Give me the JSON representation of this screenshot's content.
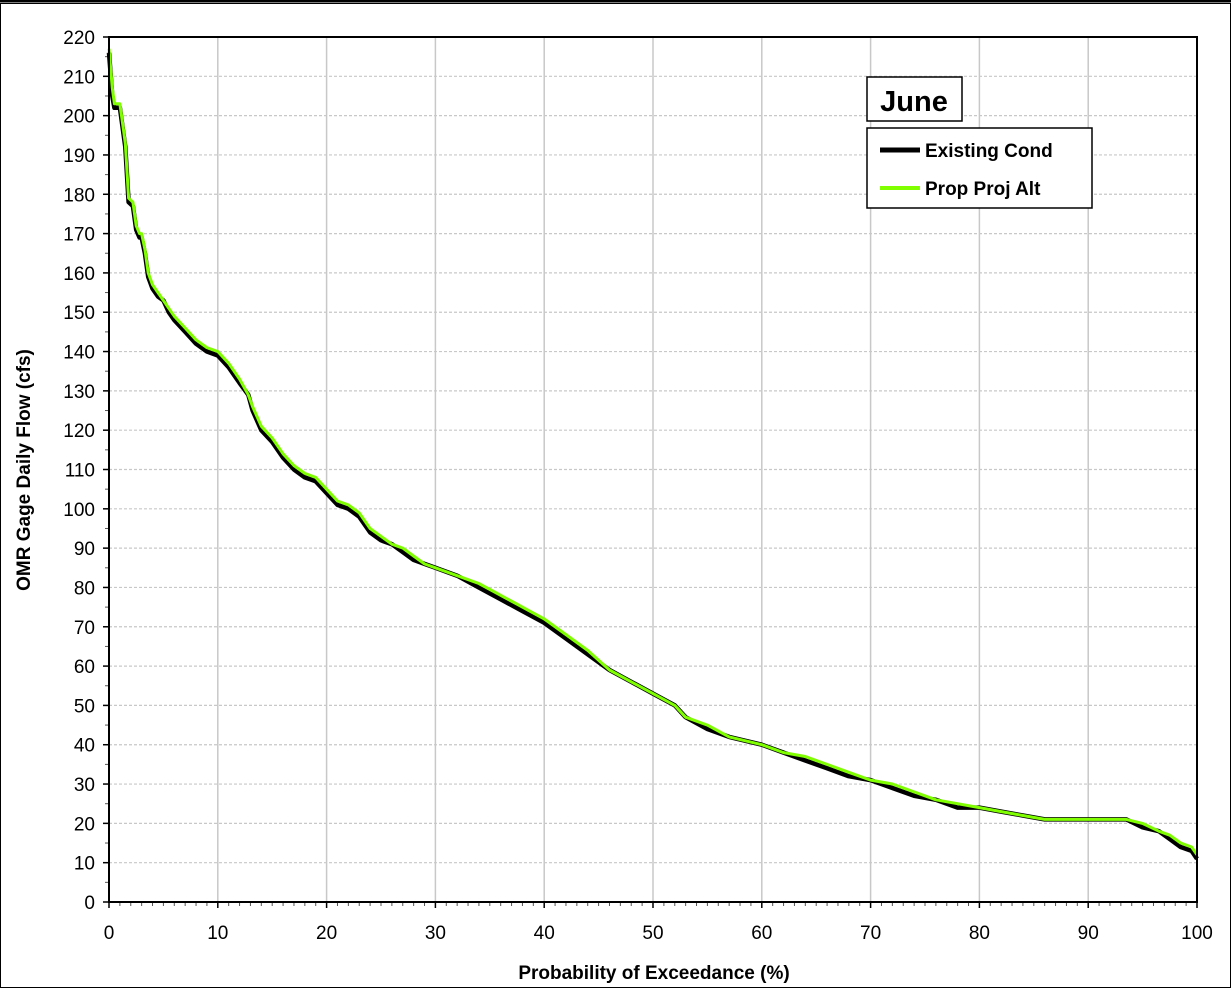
{
  "chart_data": {
    "type": "line",
    "title": "June",
    "xlabel": "Probability of Exceedance (%)",
    "ylabel": "OMR Gage Daily Flow (cfs)",
    "xlim": [
      0,
      100
    ],
    "ylim": [
      0,
      220
    ],
    "x_ticks": [
      0,
      10,
      20,
      30,
      40,
      50,
      60,
      70,
      80,
      90,
      100
    ],
    "y_ticks": [
      0,
      10,
      20,
      30,
      40,
      50,
      60,
      70,
      80,
      90,
      100,
      110,
      120,
      130,
      140,
      150,
      160,
      170,
      180,
      190,
      200,
      210,
      220
    ],
    "grid": true,
    "legend_position": "top-right",
    "series": [
      {
        "name": "Existing Cond",
        "color": "#000000",
        "x": [
          0,
          0.3,
          0.5,
          1.0,
          1.5,
          1.8,
          2.2,
          2.5,
          2.8,
          3.0,
          3.3,
          3.6,
          4.0,
          4.5,
          5.0,
          5.5,
          6.0,
          7.0,
          8.0,
          9.0,
          10.0,
          11.0,
          12.0,
          12.8,
          13.2,
          14.0,
          15.0,
          16.0,
          17.0,
          18.0,
          19.0,
          20.0,
          21.0,
          22.0,
          23.0,
          24.0,
          25.0,
          26.0,
          27.0,
          28.0,
          29.0,
          30.0,
          32.0,
          34.0,
          36.0,
          38.0,
          40.0,
          42.0,
          44.0,
          46.0,
          48.0,
          50.0,
          52.0,
          53.0,
          55.0,
          57.0,
          60.0,
          62.0,
          64.0,
          66.0,
          68.0,
          70.0,
          72.0,
          74.0,
          76.0,
          78.0,
          80.0,
          82.0,
          84.0,
          86.0,
          88.0,
          90.0,
          92.0,
          93.5,
          95.0,
          96.5,
          97.5,
          98.5,
          99.5,
          100.0
        ],
        "y": [
          216,
          205,
          202,
          202,
          192,
          178,
          177,
          171,
          169,
          169,
          165,
          159,
          156,
          154,
          153,
          150,
          148,
          145,
          142,
          140,
          139,
          136,
          132,
          129,
          125,
          120,
          117,
          113,
          110,
          108,
          107,
          104,
          101,
          100,
          98,
          94,
          92,
          91,
          89,
          87,
          86,
          85,
          83,
          80,
          77,
          74,
          71,
          67,
          63,
          59,
          56,
          53,
          50,
          47,
          44,
          42,
          40,
          38,
          36,
          34,
          32,
          31,
          29,
          27,
          26,
          24,
          24,
          23,
          22,
          21,
          21,
          21,
          21,
          21,
          19,
          18,
          16,
          14,
          13,
          11
        ]
      },
      {
        "name": "Prop Proj Alt",
        "color": "#80ff00",
        "x": [
          0,
          0.3,
          0.5,
          1.0,
          1.5,
          1.8,
          2.2,
          2.5,
          2.8,
          3.0,
          3.3,
          3.6,
          4.0,
          4.5,
          5.0,
          5.5,
          6.0,
          7.0,
          8.0,
          9.0,
          10.0,
          11.0,
          12.0,
          12.8,
          13.2,
          14.0,
          15.0,
          16.0,
          17.0,
          18.0,
          19.0,
          20.0,
          21.0,
          22.0,
          23.0,
          24.0,
          25.0,
          26.0,
          27.0,
          28.0,
          29.0,
          30.0,
          32.0,
          34.0,
          36.0,
          38.0,
          40.0,
          42.0,
          44.0,
          46.0,
          48.0,
          50.0,
          52.0,
          53.0,
          55.0,
          57.0,
          60.0,
          62.0,
          64.0,
          66.0,
          68.0,
          70.0,
          72.0,
          74.0,
          76.0,
          78.0,
          80.0,
          82.0,
          84.0,
          86.0,
          88.0,
          90.0,
          92.0,
          93.5,
          95.0,
          96.5,
          97.5,
          98.5,
          99.5,
          100.0
        ],
        "y": [
          217,
          207,
          203,
          203,
          193,
          179,
          178,
          172,
          170,
          170,
          166,
          160,
          157,
          155,
          153,
          151,
          149,
          146,
          143,
          141,
          140,
          137,
          133,
          129,
          126,
          121,
          118,
          114,
          111,
          109,
          108,
          105,
          102,
          101,
          99,
          95,
          93,
          91,
          90,
          88,
          86,
          85,
          83,
          81,
          78,
          75,
          72,
          68,
          64,
          59,
          56,
          53,
          50,
          47,
          45,
          42,
          40,
          38,
          37,
          35,
          33,
          31,
          30,
          28,
          26,
          25,
          24,
          23,
          22,
          21,
          21,
          21,
          21,
          21,
          20,
          18,
          17,
          15,
          14,
          12
        ]
      }
    ]
  }
}
